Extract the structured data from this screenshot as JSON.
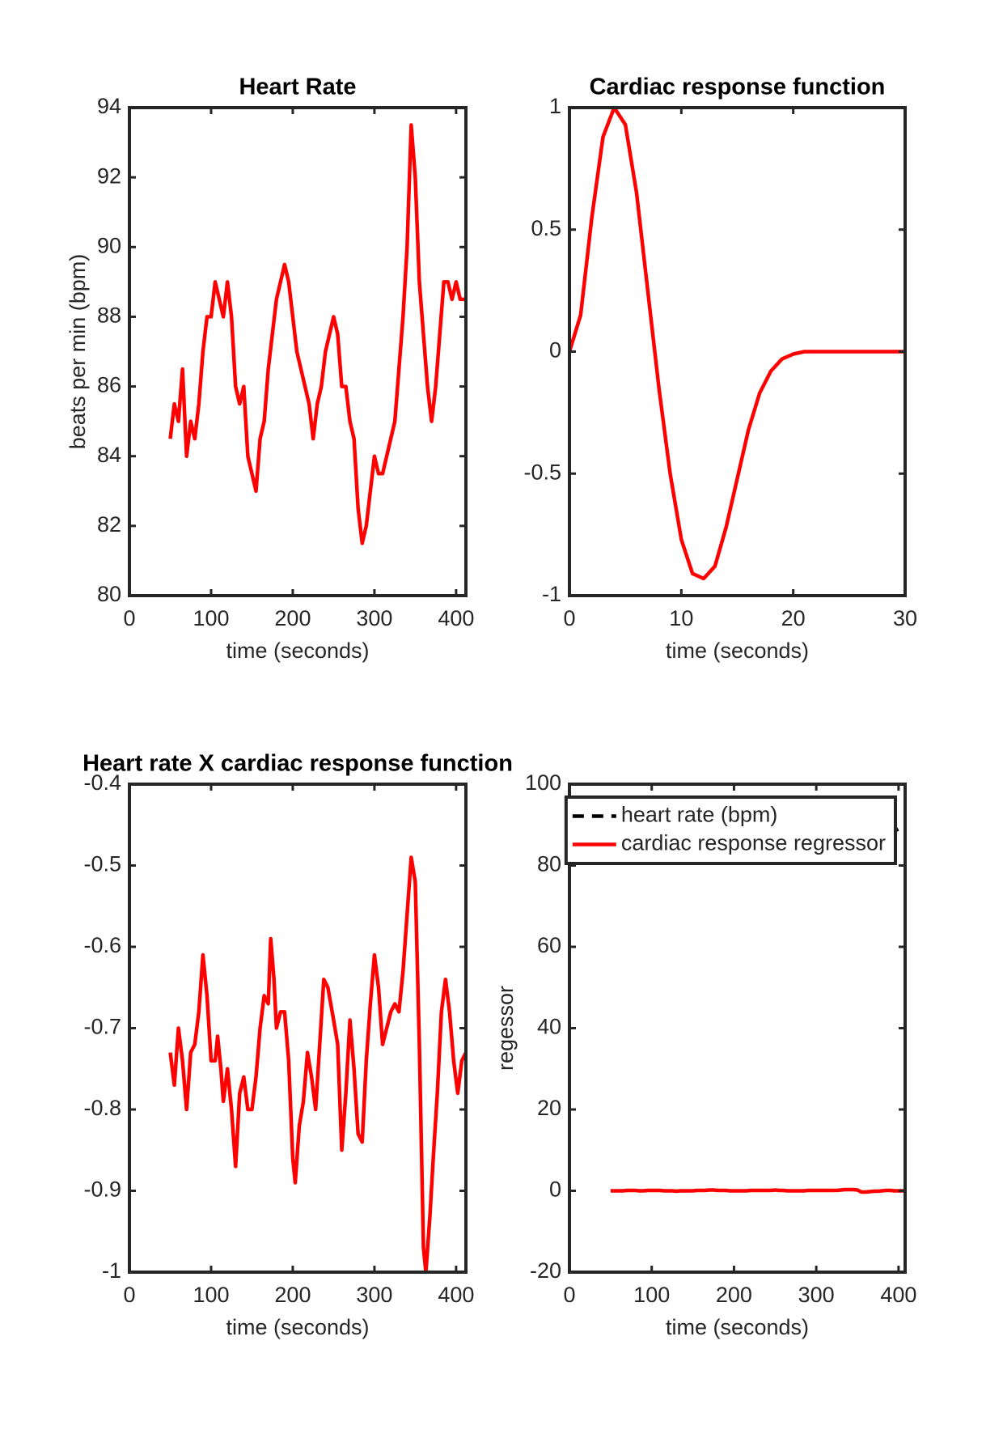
{
  "chart_data": [
    {
      "type": "line",
      "title": "Heart Rate",
      "xlabel": "time (seconds)",
      "ylabel": "beats per min (bpm)",
      "x": [
        50,
        55,
        60,
        65,
        70,
        75,
        80,
        85,
        90,
        95,
        100,
        105,
        110,
        115,
        120,
        125,
        130,
        135,
        140,
        145,
        150,
        155,
        160,
        165,
        170,
        175,
        180,
        185,
        190,
        195,
        200,
        205,
        210,
        215,
        220,
        225,
        230,
        235,
        240,
        245,
        250,
        255,
        260,
        265,
        270,
        275,
        280,
        285,
        290,
        295,
        300,
        305,
        310,
        315,
        320,
        325,
        330,
        335,
        340,
        345,
        350,
        355,
        360,
        365,
        370,
        375,
        380,
        385,
        390,
        395,
        400,
        405,
        410
      ],
      "series": [
        {
          "color": "#ff0000",
          "values": [
            84.5,
            85.5,
            85,
            86.5,
            84,
            85,
            84.5,
            85.5,
            87,
            88,
            88,
            89,
            88.5,
            88,
            89,
            88,
            86,
            85.5,
            86,
            84,
            83.5,
            83,
            84.5,
            85,
            86.5,
            87.5,
            88.5,
            89,
            89.5,
            89,
            88,
            87,
            86.5,
            86,
            85.5,
            84.5,
            85.5,
            86,
            87,
            87.5,
            88,
            87.5,
            86,
            86,
            85,
            84.5,
            82.5,
            81.5,
            82,
            83,
            84,
            83.5,
            83.5,
            84,
            84.5,
            85,
            86.5,
            88,
            90,
            93.5,
            92,
            89,
            87.5,
            86,
            85,
            86,
            87.5,
            89,
            89,
            88.5,
            89,
            88.5,
            88.5
          ]
        }
      ],
      "xlim": [
        0,
        412
      ],
      "ylim": [
        80,
        94
      ],
      "xticks": [
        0,
        100,
        200,
        300,
        400
      ],
      "yticks": [
        80,
        82,
        84,
        86,
        88,
        90,
        92,
        94
      ]
    },
    {
      "type": "line",
      "title": "Cardiac response function",
      "xlabel": "time (seconds)",
      "x": [
        0,
        1,
        2,
        3,
        4,
        5,
        6,
        7,
        8,
        9,
        10,
        11,
        12,
        13,
        14,
        15,
        16,
        17,
        18,
        19,
        20,
        21,
        22,
        23,
        24,
        25,
        26,
        27,
        28,
        29,
        30
      ],
      "series": [
        {
          "color": "#ff0000",
          "values": [
            0,
            0.15,
            0.55,
            0.88,
            1,
            0.93,
            0.65,
            0.25,
            -0.15,
            -0.5,
            -0.77,
            -0.91,
            -0.93,
            -0.88,
            -0.72,
            -0.52,
            -0.32,
            -0.17,
            -0.08,
            -0.03,
            -0.01,
            0,
            0,
            0,
            0,
            0,
            0,
            0,
            0,
            0,
            0
          ]
        }
      ],
      "xlim": [
        0,
        30
      ],
      "ylim": [
        -1,
        1
      ],
      "xticks": [
        0,
        10,
        20,
        30
      ],
      "yticks": [
        -1,
        -0.5,
        0,
        0.5,
        1
      ]
    },
    {
      "type": "line",
      "title": "Heart rate X cardiac response function",
      "xlabel": "time (seconds)",
      "x": [
        50,
        55,
        60,
        65,
        70,
        75,
        80,
        85,
        90,
        95,
        100,
        105,
        108,
        112,
        115,
        120,
        125,
        130,
        135,
        140,
        145,
        150,
        155,
        160,
        165,
        170,
        173,
        177,
        180,
        185,
        190,
        195,
        200,
        203,
        208,
        213,
        218,
        223,
        228,
        233,
        238,
        243,
        250,
        255,
        260,
        265,
        270,
        275,
        280,
        285,
        290,
        295,
        300,
        305,
        310,
        315,
        320,
        325,
        330,
        335,
        340,
        345,
        350,
        355,
        360,
        363,
        368,
        372,
        377,
        382,
        387,
        392,
        397,
        402,
        407,
        412
      ],
      "series": [
        {
          "color": "#ff0000",
          "values": [
            -0.73,
            -0.77,
            -0.7,
            -0.74,
            -0.8,
            -0.73,
            -0.72,
            -0.68,
            -0.61,
            -0.66,
            -0.74,
            -0.74,
            -0.71,
            -0.75,
            -0.79,
            -0.75,
            -0.8,
            -0.87,
            -0.78,
            -0.76,
            -0.8,
            -0.8,
            -0.76,
            -0.7,
            -0.66,
            -0.67,
            -0.59,
            -0.64,
            -0.7,
            -0.68,
            -0.68,
            -0.74,
            -0.86,
            -0.89,
            -0.82,
            -0.79,
            -0.73,
            -0.76,
            -0.8,
            -0.72,
            -0.64,
            -0.65,
            -0.69,
            -0.72,
            -0.85,
            -0.78,
            -0.69,
            -0.75,
            -0.83,
            -0.84,
            -0.74,
            -0.67,
            -0.61,
            -0.65,
            -0.72,
            -0.7,
            -0.68,
            -0.67,
            -0.68,
            -0.63,
            -0.56,
            -0.49,
            -0.52,
            -0.72,
            -0.97,
            -1,
            -0.93,
            -0.86,
            -0.78,
            -0.68,
            -0.64,
            -0.68,
            -0.74,
            -0.78,
            -0.74,
            -0.73
          ]
        }
      ],
      "xlim": [
        0,
        412
      ],
      "ylim": [
        -1,
        -0.4
      ],
      "xticks": [
        0,
        100,
        200,
        300,
        400
      ],
      "yticks": [
        -1,
        -0.9,
        -0.8,
        -0.7,
        -0.6,
        -0.5,
        -0.4
      ]
    },
    {
      "type": "line",
      "xlabel": "time (seconds)",
      "ylabel": "regessor",
      "legend": "upper right",
      "x": [
        50,
        55,
        60,
        65,
        70,
        75,
        80,
        85,
        90,
        95,
        100,
        105,
        110,
        115,
        120,
        125,
        130,
        135,
        140,
        145,
        150,
        155,
        160,
        165,
        170,
        175,
        180,
        185,
        190,
        195,
        200,
        205,
        210,
        215,
        220,
        225,
        230,
        235,
        240,
        245,
        250,
        255,
        260,
        265,
        270,
        275,
        280,
        285,
        290,
        295,
        300,
        305,
        310,
        315,
        320,
        325,
        330,
        335,
        340,
        345,
        350,
        355,
        360,
        365,
        370,
        375,
        380,
        385,
        390,
        395,
        400,
        405,
        410
      ],
      "series": [
        {
          "name": "heart rate (bpm)",
          "color": "#000000",
          "dashed": true,
          "values": [
            84.5,
            85.5,
            85,
            86.5,
            84,
            85,
            84.5,
            85.5,
            87,
            88,
            88,
            89,
            88.5,
            88,
            89,
            88,
            86,
            85.5,
            86,
            84,
            83.5,
            83,
            84.5,
            85,
            86.5,
            87.5,
            88.5,
            89,
            89.5,
            89,
            88,
            87,
            86.5,
            86,
            85.5,
            84.5,
            85.5,
            86,
            87,
            87.5,
            88,
            87.5,
            86,
            86,
            85,
            84.5,
            82.5,
            81.5,
            82,
            83,
            84,
            83.5,
            83.5,
            84,
            84.5,
            85,
            86.5,
            88,
            90,
            93.5,
            92,
            89,
            87.5,
            86,
            85,
            86,
            87.5,
            89,
            89,
            88.5,
            89,
            88.5,
            88.5
          ]
        },
        {
          "name": "cardiac response regressor",
          "color": "#ff0000",
          "dashed": false,
          "values": [
            0,
            0,
            0,
            0,
            0.1,
            0.1,
            0.1,
            0,
            0,
            0.1,
            0.1,
            0.1,
            0.1,
            0,
            0,
            0,
            -0.1,
            0,
            0,
            0,
            0,
            0.1,
            0.1,
            0.1,
            0.2,
            0.2,
            0.1,
            0.1,
            0.1,
            0,
            0,
            0,
            0,
            0,
            0.1,
            0.1,
            0.1,
            0.1,
            0.1,
            0.1,
            0.2,
            0.1,
            0.1,
            0,
            0,
            0,
            0,
            0,
            0.1,
            0.1,
            0.1,
            0.1,
            0.1,
            0.1,
            0.1,
            0.1,
            0.2,
            0.3,
            0.3,
            0.3,
            0.2,
            -0.3,
            -0.3,
            -0.2,
            -0.1,
            -0.1,
            0,
            0.1,
            0.1,
            0,
            0,
            0,
            0
          ]
        }
      ],
      "xlim": [
        0,
        408
      ],
      "ylim": [
        -20,
        100
      ],
      "xticks": [
        0,
        100,
        200,
        300,
        400
      ],
      "yticks": [
        -20,
        0,
        20,
        40,
        60,
        80,
        100
      ]
    }
  ]
}
